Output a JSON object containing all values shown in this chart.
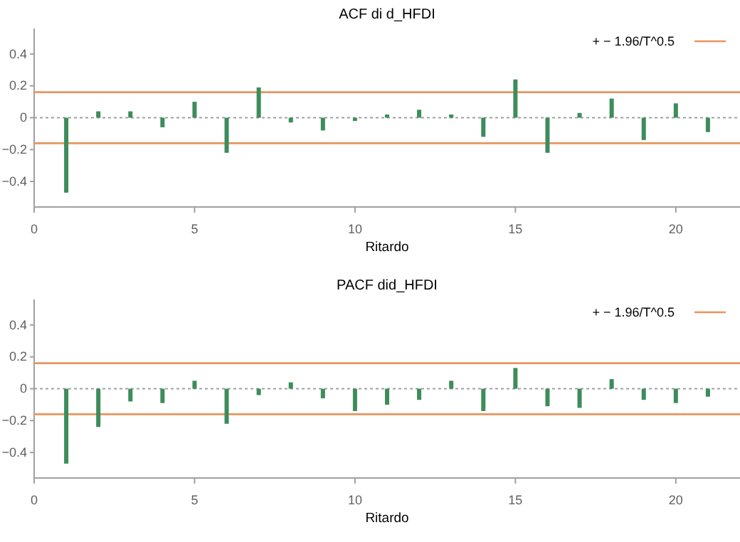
{
  "chart_data": [
    {
      "type": "bar",
      "title": "ACF di d_HFDI",
      "xlabel": "Ritardo",
      "x": [
        1,
        2,
        3,
        4,
        5,
        6,
        7,
        8,
        9,
        10,
        11,
        12,
        13,
        14,
        15,
        16,
        17,
        18,
        19,
        20,
        21
      ],
      "series": [
        {
          "color": "#3d8c5c",
          "values": [
            -0.47,
            0.04,
            0.04,
            -0.06,
            0.1,
            -0.22,
            0.19,
            -0.03,
            -0.08,
            -0.02,
            0.02,
            0.05,
            0.02,
            -0.12,
            0.24,
            -0.22,
            0.03,
            0.12,
            -0.14,
            0.09,
            -0.09
          ]
        }
      ],
      "xlim": [
        0,
        22
      ],
      "xticks": [
        0,
        5,
        10,
        15,
        20
      ],
      "ylim": [
        -0.56,
        0.56
      ],
      "yticks": [
        -0.4,
        -0.2,
        0,
        0.2,
        0.4
      ],
      "ref_lines": [
        {
          "axis": "y",
          "value": 0.16,
          "label": "+ − 1.96/T^0.5",
          "color": "#e8955e"
        },
        {
          "axis": "y",
          "value": -0.16,
          "color": "#e8955e"
        },
        {
          "axis": "y",
          "value": 0,
          "color": "#a0a0a0",
          "line_style": "dotted"
        }
      ],
      "legend": "top right",
      "grid": false
    },
    {
      "type": "bar",
      "title": "PACF did_HFDI",
      "xlabel": "Ritardo",
      "x": [
        1,
        2,
        3,
        4,
        5,
        6,
        7,
        8,
        9,
        10,
        11,
        12,
        13,
        14,
        15,
        16,
        17,
        18,
        19,
        20,
        21
      ],
      "series": [
        {
          "color": "#3d8c5c",
          "values": [
            -0.47,
            -0.24,
            -0.08,
            -0.09,
            0.05,
            -0.22,
            -0.04,
            0.04,
            -0.06,
            -0.14,
            -0.1,
            -0.07,
            0.05,
            -0.14,
            0.13,
            -0.11,
            -0.12,
            0.06,
            -0.07,
            -0.09,
            -0.05
          ]
        }
      ],
      "xlim": [
        0,
        22
      ],
      "xticks": [
        0,
        5,
        10,
        15,
        20
      ],
      "ylim": [
        -0.56,
        0.56
      ],
      "yticks": [
        -0.4,
        -0.2,
        0,
        0.2,
        0.4
      ],
      "ref_lines": [
        {
          "axis": "y",
          "value": 0.16,
          "label": "+ − 1.96/T^0.5",
          "color": "#e8955e"
        },
        {
          "axis": "y",
          "value": -0.16,
          "color": "#e8955e"
        },
        {
          "axis": "y",
          "value": 0,
          "color": "#a0a0a0",
          "line_style": "dotted"
        }
      ],
      "legend": "top right",
      "grid": false
    }
  ]
}
